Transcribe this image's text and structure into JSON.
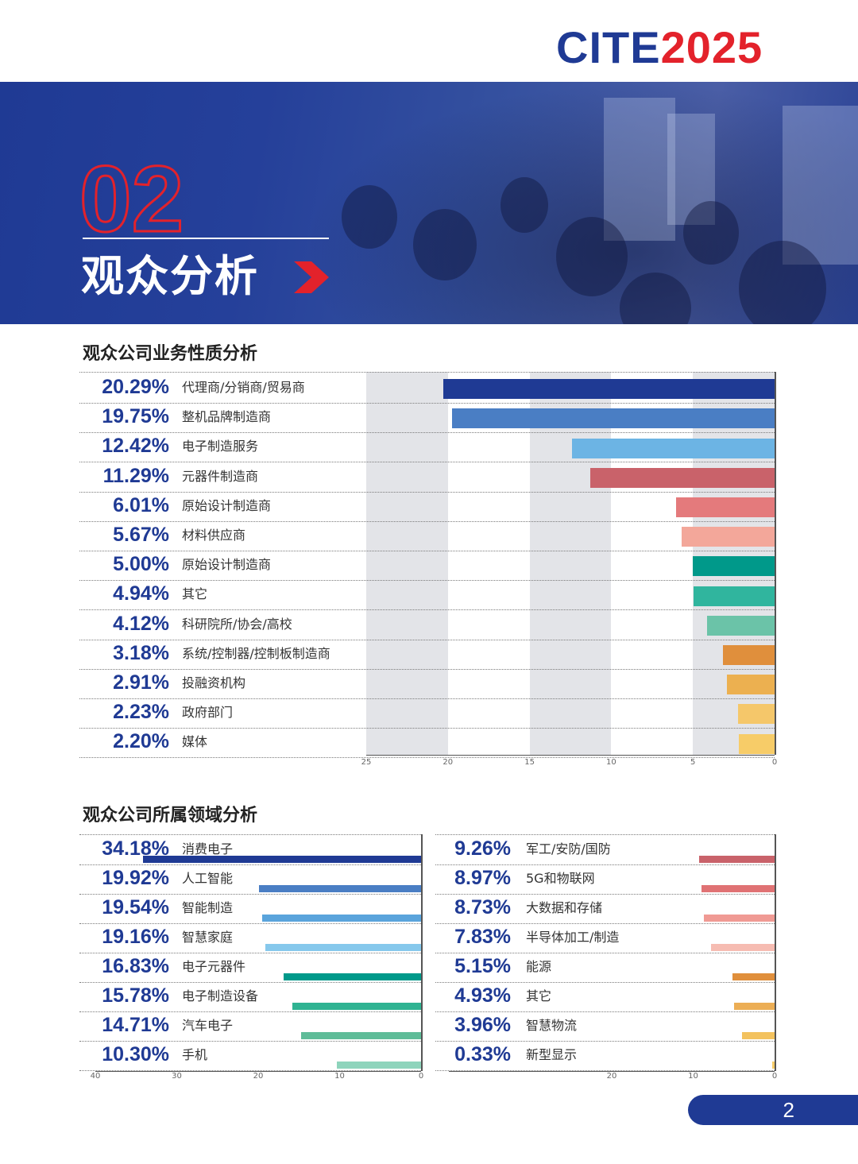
{
  "header": {
    "logo_cite": "CITE",
    "logo_year": "2025",
    "section_number": "02",
    "section_title": "观众分析"
  },
  "colors": {
    "primary": "#1f3a94",
    "accent": "#e3222b"
  },
  "chart_data": [
    {
      "type": "bar",
      "title": "观众公司业务性质分析",
      "orientation": "horizontal",
      "direction": "right-to-left",
      "xlim": [
        25,
        0
      ],
      "ticks": [
        "25",
        "20",
        "15",
        "10",
        "5",
        "0"
      ],
      "categories": [
        "代理商/分销商/贸易商",
        "整机品牌制造商",
        "电子制造服务",
        "元器件制造商",
        "原始设计制造商",
        "材料供应商",
        "原始设计制造商",
        "其它",
        "科研院所/协会/高校",
        "系统/控制器/控制板制造商",
        "投融资机构",
        "政府部门",
        "媒体"
      ],
      "labels": [
        "20.29%",
        "19.75%",
        "12.42%",
        "11.29%",
        "6.01%",
        "5.67%",
        "5.00%",
        "4.94%",
        "4.12%",
        "3.18%",
        "2.91%",
        "2.23%",
        "2.20%"
      ],
      "values": [
        20.29,
        19.75,
        12.42,
        11.29,
        6.01,
        5.67,
        5.0,
        4.94,
        4.12,
        3.18,
        2.91,
        2.23,
        2.2
      ],
      "colors": [
        "#1f3a94",
        "#4a7ec4",
        "#6cb4e4",
        "#c9626a",
        "#e47a7c",
        "#f3a79a",
        "#00998a",
        "#30b59e",
        "#6bc3a8",
        "#e08f3c",
        "#ecb050",
        "#f5c76a",
        "#f7cc68"
      ],
      "grid": "alternating-bands"
    },
    {
      "type": "bar",
      "title": "观众公司所属领域分析",
      "orientation": "horizontal",
      "direction": "right-to-left",
      "xlim": [
        40,
        0
      ],
      "ticks": [
        "40",
        "30",
        "20",
        "10",
        "0"
      ],
      "categories": [
        "消费电子",
        "人工智能",
        "智能制造",
        "智慧家庭",
        "电子元器件",
        "电子制造设备",
        "汽车电子",
        "手机"
      ],
      "labels": [
        "34.18%",
        "19.92%",
        "19.54%",
        "19.16%",
        "16.83%",
        "15.78%",
        "14.71%",
        "10.30%"
      ],
      "values": [
        34.18,
        19.92,
        19.54,
        19.16,
        16.83,
        15.78,
        14.71,
        10.3
      ],
      "colors": [
        "#1f3a94",
        "#4a7ec4",
        "#5aa4dc",
        "#86c8ec",
        "#00998a",
        "#2fb392",
        "#5ebc98",
        "#8ed4bc"
      ]
    },
    {
      "type": "bar",
      "orientation": "horizontal",
      "direction": "right-to-left",
      "xlim": [
        40,
        0
      ],
      "ticks": [
        "20",
        "10",
        "0"
      ],
      "categories": [
        "军工/安防/国防",
        "5G和物联网",
        "大数据和存储",
        "半导体加工/制造",
        "能源",
        "其它",
        "智慧物流",
        "新型显示"
      ],
      "labels": [
        "9.26%",
        "8.97%",
        "8.73%",
        "7.83%",
        "5.15%",
        "4.93%",
        "3.96%",
        "0.33%"
      ],
      "values": [
        9.26,
        8.97,
        8.73,
        7.83,
        5.15,
        4.93,
        3.96,
        0.33
      ],
      "colors": [
        "#c9626a",
        "#e07274",
        "#f09a94",
        "#f6bcb2",
        "#e08f3c",
        "#ecae55",
        "#f3c25e",
        "#f7cc68"
      ]
    }
  ],
  "page": {
    "number": "2"
  }
}
